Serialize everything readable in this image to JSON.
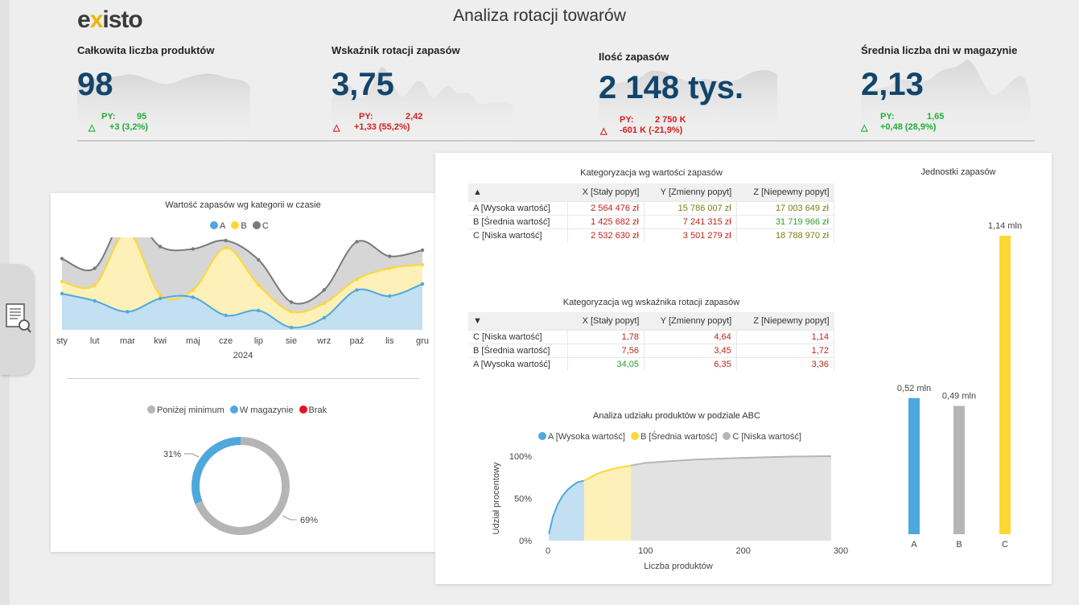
{
  "header": {
    "logo_left": "e",
    "logo_x": "x",
    "logo_right": "isto",
    "title": "Analiza rotacji towarów"
  },
  "kpis": [
    {
      "title": "Całkowita liczba produktów",
      "value": "98",
      "py_label": "PY:",
      "py_value": "95",
      "delta": "+3 (3,2%)",
      "status": "green"
    },
    {
      "title": "Wskaźnik rotacji zapasów",
      "value": "3,75",
      "py_label": "PY:",
      "py_value": "2,42",
      "delta": "+1,33 (55,2%)",
      "status": "red"
    },
    {
      "title": "Ilość zapasów",
      "value": "2 148 tys.",
      "py_label": "PY:",
      "py_value": "2 750 K",
      "delta": "-601 K (-21,9%)",
      "status": "red"
    },
    {
      "title": "Średnia liczba dni w magazynie",
      "value": "2,13",
      "py_label": "PY:",
      "py_value": "1,65",
      "delta": "+0,48 (28,9%)",
      "status": "green"
    }
  ],
  "delta_icon": "triangle-icon",
  "colors": {
    "A": "#4fa8dd",
    "B": "#fdd835",
    "C": "#7a7a7a",
    "green": "#1fae37",
    "red": "#d42020",
    "kpi_value": "#12456b",
    "grey": "#b5b5b5",
    "brak": "#e81123"
  },
  "area_chart": {
    "title": "Wartość zapasów wg kategorii w czasie",
    "legend": [
      "A",
      "B",
      "C"
    ],
    "year": "2024"
  },
  "donut_chart": {
    "legend": [
      "Poniżej minimum",
      "W magazynie",
      "Brak"
    ],
    "label_small": "31%",
    "label_large": "69%"
  },
  "table_value": {
    "title": "Kategoryzacja wg wartości zapasów",
    "sort_icon": "sort-up-icon",
    "columns": [
      "X [Stały popyt]",
      "Y [Zmienny popyt]",
      "Z [Niepewny popyt]"
    ],
    "rows": [
      {
        "label": "A [Wysoka wartość]",
        "cells": [
          "2 564 476 zł",
          "15 786 007 zł",
          "17 003 649 zł"
        ],
        "tones": [
          "red",
          "olive",
          "olive"
        ]
      },
      {
        "label": "B [Średnia wartość]",
        "cells": [
          "1 425 682 zł",
          "7 241 315 zł",
          "31 719 966 zł"
        ],
        "tones": [
          "red",
          "red",
          "green"
        ]
      },
      {
        "label": "C [Niska wartość]",
        "cells": [
          "2 532 630 zł",
          "3 501 279 zł",
          "18 788 970 zł"
        ],
        "tones": [
          "red",
          "red",
          "olive"
        ]
      }
    ]
  },
  "table_rotation": {
    "title": "Kategoryzacja wg wskaźnika rotacji zapasów",
    "sort_icon": "sort-down-icon",
    "columns": [
      "X [Stały popyt]",
      "Y [Zmienny popyt]",
      "Z [Niepewny popyt]"
    ],
    "rows": [
      {
        "label": "C [Niska wartość]",
        "cells": [
          "1,78",
          "4,64",
          "1,14"
        ],
        "tones": [
          "red",
          "red",
          "red"
        ]
      },
      {
        "label": "B [Średnia wartość]",
        "cells": [
          "7,56",
          "3,45",
          "1,72"
        ],
        "tones": [
          "red",
          "red",
          "red"
        ]
      },
      {
        "label": "A [Wysoka wartość]",
        "cells": [
          "34,05",
          "6,35",
          "3,36"
        ],
        "tones": [
          "green",
          "red",
          "red"
        ]
      }
    ]
  },
  "abc_chart": {
    "title": "Analiza udziału produktów w podziale ABC",
    "legend": [
      "A [Wysoka wartość]",
      "B [Średnia wartość]",
      "C [Niska wartość]"
    ]
  },
  "units_chart": {
    "title": "Jednostki zapasów"
  },
  "chart_data": [
    {
      "type": "area",
      "title": "Wartość zapasów wg kategorii w czasie",
      "stacked": true,
      "categories": [
        "sty",
        "lut",
        "mar",
        "kwi",
        "maj",
        "cze",
        "lip",
        "sie",
        "wrz",
        "paź",
        "lis",
        "gru"
      ],
      "xlabel": "2024",
      "legend_position": "top",
      "series": [
        {
          "name": "A",
          "values": [
            30,
            24,
            15,
            26,
            27,
            12,
            16,
            2,
            10,
            33,
            28,
            38
          ]
        },
        {
          "name": "B",
          "values": [
            10,
            13,
            66,
            3,
            6,
            56,
            21,
            13,
            12,
            9,
            23,
            16
          ]
        },
        {
          "name": "C",
          "values": [
            19,
            14,
            16,
            40,
            34,
            6,
            21,
            8,
            11,
            31,
            10,
            12
          ]
        }
      ]
    },
    {
      "type": "pie",
      "donut": true,
      "categories": [
        "Poniżej minimum",
        "W magazynie",
        "Brak"
      ],
      "values": [
        69,
        31,
        0
      ],
      "labels": [
        "69%",
        "31%",
        ""
      ],
      "legend_position": "top"
    },
    {
      "type": "area",
      "title": "Analiza udziału produktów w podziale ABC",
      "xlabel": "Liczba produktów",
      "ylabel": "Udział procentowy",
      "xlim": [
        0,
        300
      ],
      "ylim": [
        0,
        1
      ],
      "x_ticks": [
        "0",
        "100",
        "200",
        "300"
      ],
      "y_ticks": [
        "0%",
        "50%",
        "100%"
      ],
      "legend_position": "top",
      "series": [
        {
          "name": "A [Wysoka wartość]",
          "x": [
            1,
            5,
            10,
            15,
            20,
            25,
            30,
            37
          ],
          "y": [
            0.08,
            0.28,
            0.43,
            0.53,
            0.6,
            0.65,
            0.69,
            0.71
          ]
        },
        {
          "name": "B [Średnia wartość]",
          "x": [
            37,
            50,
            60,
            70,
            85
          ],
          "y": [
            0.71,
            0.79,
            0.83,
            0.86,
            0.89
          ]
        },
        {
          "name": "C [Niska wartość]",
          "x": [
            85,
            100,
            125,
            150,
            200,
            250,
            290
          ],
          "y": [
            0.89,
            0.92,
            0.94,
            0.96,
            0.98,
            0.995,
            1.0
          ]
        }
      ]
    },
    {
      "type": "bar",
      "title": "Jednostki zapasów",
      "categories": [
        "A",
        "B",
        "C"
      ],
      "values": [
        0.52,
        0.49,
        1.14
      ],
      "labels": [
        "0,52 mln",
        "0,49 mln",
        "1,14 mln"
      ],
      "ylim": [
        0,
        1.14
      ]
    }
  ]
}
